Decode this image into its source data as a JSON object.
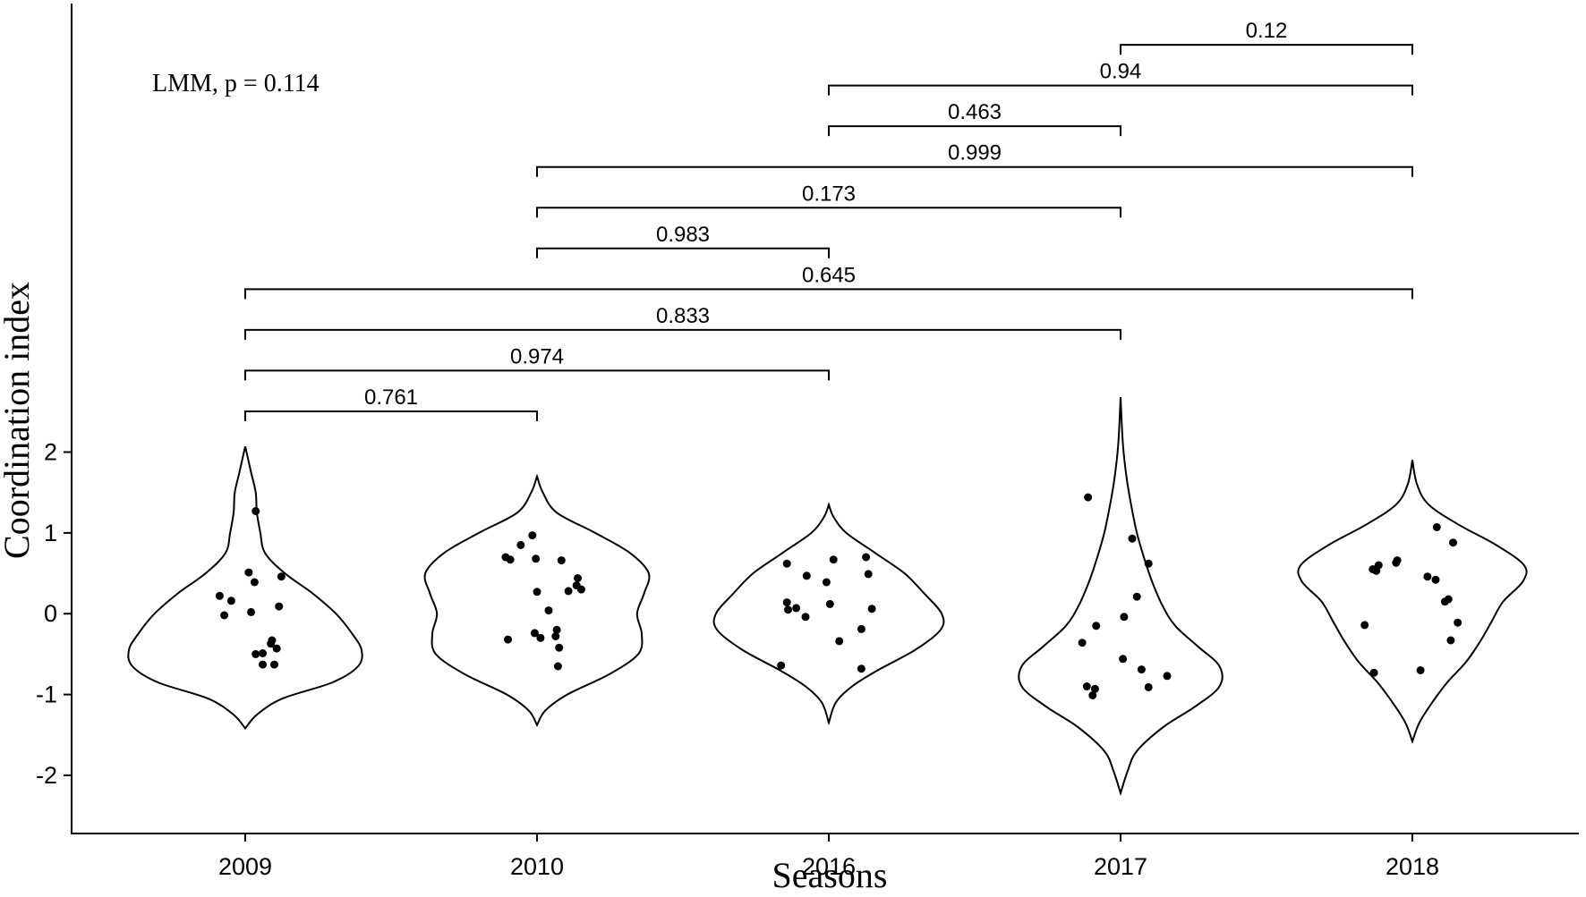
{
  "chart_data": {
    "type": "violin",
    "xlabel": "Seasons",
    "ylabel": "Coordination index",
    "annotation": "LMM, p = 0.114",
    "categories": [
      "2009",
      "2010",
      "2016",
      "2017",
      "2018"
    ],
    "yticks": [
      -2,
      -1,
      0,
      1,
      2
    ],
    "ylim": [
      -2.72,
      7.55
    ],
    "groups": [
      {
        "category": "2009",
        "range": [
          -1.42,
          2.07
        ],
        "density": [
          [
            -1.42,
            0.0
          ],
          [
            -1.25,
            0.1
          ],
          [
            -1.05,
            0.32
          ],
          [
            -0.85,
            0.75
          ],
          [
            -0.65,
            0.97
          ],
          [
            -0.45,
            1.0
          ],
          [
            -0.25,
            0.92
          ],
          [
            0.0,
            0.78
          ],
          [
            0.25,
            0.58
          ],
          [
            0.5,
            0.34
          ],
          [
            0.75,
            0.17
          ],
          [
            1.0,
            0.13
          ],
          [
            1.25,
            0.1
          ],
          [
            1.5,
            0.09
          ],
          [
            1.75,
            0.05
          ],
          [
            2.07,
            0.0
          ]
        ],
        "points": [
          [
            0.22,
            -0.22
          ],
          [
            0.16,
            -0.12
          ],
          [
            -0.02,
            -0.18
          ],
          [
            1.27,
            0.09
          ],
          [
            0.51,
            0.03
          ],
          [
            0.39,
            0.08
          ],
          [
            0.46,
            0.31
          ],
          [
            0.02,
            0.05
          ],
          [
            0.09,
            0.29
          ],
          [
            -0.33,
            0.23
          ],
          [
            -0.37,
            0.22
          ],
          [
            -0.43,
            0.27
          ],
          [
            -0.5,
            0.09
          ],
          [
            -0.49,
            0.15
          ],
          [
            -0.63,
            0.15
          ],
          [
            -0.63,
            0.25
          ]
        ]
      },
      {
        "category": "2010",
        "range": [
          -1.38,
          1.7
        ],
        "density": [
          [
            -1.38,
            0.0
          ],
          [
            -1.2,
            0.07
          ],
          [
            -1.0,
            0.26
          ],
          [
            -0.75,
            0.62
          ],
          [
            -0.5,
            0.87
          ],
          [
            -0.25,
            0.9
          ],
          [
            0.0,
            0.86
          ],
          [
            0.25,
            0.92
          ],
          [
            0.5,
            0.96
          ],
          [
            0.75,
            0.8
          ],
          [
            1.0,
            0.5
          ],
          [
            1.25,
            0.17
          ],
          [
            1.5,
            0.05
          ],
          [
            1.7,
            0.0
          ]
        ],
        "points": [
          [
            0.7,
            -0.27
          ],
          [
            0.67,
            -0.23
          ],
          [
            0.85,
            -0.14
          ],
          [
            0.97,
            -0.04
          ],
          [
            0.68,
            -0.01
          ],
          [
            0.66,
            0.21
          ],
          [
            0.27,
            0.0
          ],
          [
            0.04,
            0.1
          ],
          [
            -0.2,
            0.17
          ],
          [
            -0.28,
            0.16
          ],
          [
            -0.24,
            -0.02
          ],
          [
            -0.32,
            -0.25
          ],
          [
            -0.3,
            0.03
          ],
          [
            -0.42,
            0.19
          ],
          [
            -0.65,
            0.18
          ],
          [
            0.28,
            0.27
          ],
          [
            0.44,
            0.35
          ],
          [
            0.35,
            0.34
          ],
          [
            0.3,
            0.38
          ]
        ]
      },
      {
        "category": "2016",
        "range": [
          -1.35,
          1.35
        ],
        "density": [
          [
            -1.35,
            0.0
          ],
          [
            -1.1,
            0.06
          ],
          [
            -0.9,
            0.2
          ],
          [
            -0.7,
            0.42
          ],
          [
            -0.45,
            0.74
          ],
          [
            -0.2,
            0.96
          ],
          [
            0.0,
            0.97
          ],
          [
            0.25,
            0.82
          ],
          [
            0.5,
            0.65
          ],
          [
            0.75,
            0.4
          ],
          [
            1.0,
            0.15
          ],
          [
            1.2,
            0.04
          ],
          [
            1.35,
            0.0
          ]
        ],
        "points": [
          [
            0.62,
            -0.36
          ],
          [
            0.14,
            -0.36
          ],
          [
            0.05,
            -0.35
          ],
          [
            0.07,
            -0.28
          ],
          [
            -0.04,
            -0.2
          ],
          [
            0.47,
            -0.19
          ],
          [
            0.39,
            -0.02
          ],
          [
            0.12,
            0.01
          ],
          [
            0.67,
            0.04
          ],
          [
            -0.34,
            0.09
          ],
          [
            -0.64,
            -0.41
          ],
          [
            0.7,
            0.32
          ],
          [
            0.49,
            0.34
          ],
          [
            -0.19,
            0.28
          ],
          [
            -0.68,
            0.28
          ],
          [
            0.06,
            0.37
          ]
        ]
      },
      {
        "category": "2017",
        "range": [
          -2.22,
          2.68
        ],
        "density": [
          [
            -2.22,
            0.0
          ],
          [
            -1.95,
            0.06
          ],
          [
            -1.7,
            0.14
          ],
          [
            -1.4,
            0.37
          ],
          [
            -1.15,
            0.64
          ],
          [
            -0.9,
            0.85
          ],
          [
            -0.65,
            0.85
          ],
          [
            -0.4,
            0.66
          ],
          [
            -0.15,
            0.47
          ],
          [
            0.1,
            0.36
          ],
          [
            0.4,
            0.27
          ],
          [
            0.7,
            0.2
          ],
          [
            1.0,
            0.14
          ],
          [
            1.35,
            0.09
          ],
          [
            1.7,
            0.05
          ],
          [
            2.1,
            0.02
          ],
          [
            2.68,
            0.0
          ]
        ],
        "points": [
          [
            1.44,
            -0.28
          ],
          [
            0.93,
            0.1
          ],
          [
            0.62,
            0.24
          ],
          [
            -0.15,
            -0.21
          ],
          [
            -0.36,
            -0.33
          ],
          [
            -0.04,
            0.03
          ],
          [
            0.21,
            0.14
          ],
          [
            -0.56,
            0.02
          ],
          [
            -0.69,
            0.18
          ],
          [
            -0.77,
            0.4
          ],
          [
            -0.9,
            -0.29
          ],
          [
            -0.93,
            -0.22
          ],
          [
            -1.01,
            -0.24
          ],
          [
            -0.91,
            0.24
          ]
        ]
      },
      {
        "category": "2018",
        "range": [
          -1.58,
          1.9
        ],
        "density": [
          [
            -1.58,
            0.0
          ],
          [
            -1.35,
            0.06
          ],
          [
            -1.1,
            0.17
          ],
          [
            -0.85,
            0.3
          ],
          [
            -0.6,
            0.46
          ],
          [
            -0.35,
            0.58
          ],
          [
            -0.1,
            0.68
          ],
          [
            0.15,
            0.78
          ],
          [
            0.4,
            0.95
          ],
          [
            0.6,
            0.96
          ],
          [
            0.85,
            0.72
          ],
          [
            1.1,
            0.4
          ],
          [
            1.35,
            0.14
          ],
          [
            1.6,
            0.04
          ],
          [
            1.9,
            0.0
          ]
        ],
        "points": [
          [
            0.55,
            -0.34
          ],
          [
            0.6,
            -0.29
          ],
          [
            0.63,
            -0.14
          ],
          [
            0.66,
            -0.13
          ],
          [
            1.07,
            0.21
          ],
          [
            0.88,
            0.35
          ],
          [
            0.46,
            0.13
          ],
          [
            0.42,
            0.2
          ],
          [
            0.18,
            0.31
          ],
          [
            0.15,
            0.28
          ],
          [
            -0.14,
            -0.41
          ],
          [
            -0.73,
            -0.33
          ],
          [
            -0.7,
            0.07
          ],
          [
            -0.33,
            0.33
          ],
          [
            -0.11,
            0.39
          ],
          [
            0.53,
            -0.31
          ]
        ]
      }
    ],
    "comparisons": [
      {
        "from": "2017",
        "to": "2018",
        "p": "0.12",
        "level": 0
      },
      {
        "from": "2016",
        "to": "2018",
        "p": "0.94",
        "level": 1
      },
      {
        "from": "2016",
        "to": "2017",
        "p": "0.463",
        "level": 2
      },
      {
        "from": "2010",
        "to": "2018",
        "p": "0.999",
        "level": 3
      },
      {
        "from": "2010",
        "to": "2017",
        "p": "0.173",
        "level": 4
      },
      {
        "from": "2010",
        "to": "2016",
        "p": "0.983",
        "level": 5
      },
      {
        "from": "2009",
        "to": "2018",
        "p": "0.645",
        "level": 6
      },
      {
        "from": "2009",
        "to": "2017",
        "p": "0.833",
        "level": 7
      },
      {
        "from": "2009",
        "to": "2016",
        "p": "0.974",
        "level": 8
      },
      {
        "from": "2009",
        "to": "2010",
        "p": "0.761",
        "level": 9
      }
    ],
    "bracket_top_value": 7.04,
    "bracket_step_value": 0.504,
    "grid": false,
    "legend": "none"
  }
}
